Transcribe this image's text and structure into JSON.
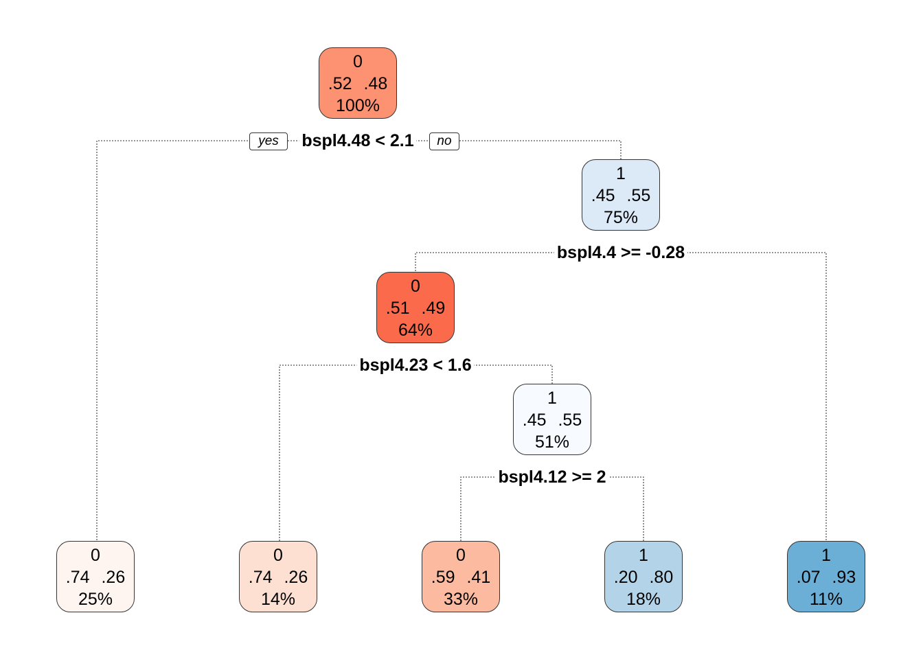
{
  "colors": {
    "node_0": "#FC9272",
    "node_1": "#DCE9F6",
    "node_2": "#FB6A4A",
    "node_3": "#F7FBFF",
    "leaf_0": "#FFF5F0",
    "leaf_1": "#FEE0D2",
    "leaf_2": "#FCBBA1",
    "leaf_3": "#B3D3E9",
    "leaf_4": "#6BAED6",
    "edge": "#555555"
  },
  "branch_labels": {
    "yes": "yes",
    "no": "no"
  },
  "nodes": [
    {
      "id": "n1",
      "class": "0",
      "probs": ".52  .48",
      "pct": "100%"
    },
    {
      "id": "n3",
      "class": "1",
      "probs": ".45  .55",
      "pct": "75%"
    },
    {
      "id": "n6",
      "class": "0",
      "probs": ".51  .49",
      "pct": "64%"
    },
    {
      "id": "n13",
      "class": "1",
      "probs": ".45  .55",
      "pct": "51%"
    },
    {
      "id": "n2",
      "class": "0",
      "probs": ".74  .26",
      "pct": "25%"
    },
    {
      "id": "n12",
      "class": "0",
      "probs": ".74  .26",
      "pct": "14%"
    },
    {
      "id": "n26",
      "class": "0",
      "probs": ".59  .41",
      "pct": "33%"
    },
    {
      "id": "n27",
      "class": "1",
      "probs": ".20  .80",
      "pct": "18%"
    },
    {
      "id": "n7",
      "class": "1",
      "probs": ".07  .93",
      "pct": "11%"
    }
  ],
  "splits": [
    {
      "id": "s1",
      "label": "bspl4.48 < 2.1"
    },
    {
      "id": "s3",
      "label": "bspl4.4 >= -0.28"
    },
    {
      "id": "s6",
      "label": "bspl4.23 < 1.6"
    },
    {
      "id": "s13",
      "label": "bspl4.12 >= 2"
    }
  ]
}
